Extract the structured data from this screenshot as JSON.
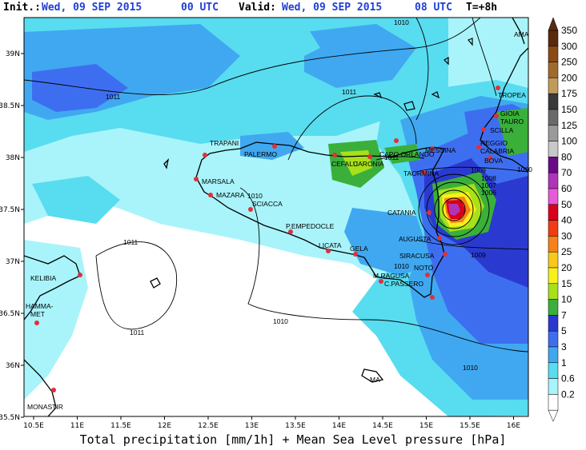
{
  "header": {
    "init_label": "Init.:",
    "init_value": "Wed, 09 SEP 2015",
    "init_time": "00 UTC",
    "valid_label": "Valid:",
    "valid_value": "Wed, 09 SEP 2015",
    "valid_time": "08 UTC",
    "lead": "T=+8h"
  },
  "footer": {
    "caption": "Total precipitation [mm/1h] + Mean Sea Level pressure [hPa]"
  },
  "axes": {
    "lon_labels": [
      "10.5E",
      "11E",
      "11.5E",
      "12E",
      "12.5E",
      "13E",
      "13.5E",
      "14E",
      "14.5E",
      "15E",
      "15.5E",
      "16E"
    ],
    "lat_labels": [
      "39N",
      "38.5N",
      "38N",
      "37.5N",
      "37N",
      "36.5N",
      "36N",
      "35.5N"
    ]
  },
  "colorbar": {
    "levels": [
      "350",
      "300",
      "250",
      "200",
      "175",
      "150",
      "125",
      "100",
      "80",
      "70",
      "60",
      "50",
      "40",
      "30",
      "25",
      "20",
      "15",
      "10",
      "7",
      "5",
      "3",
      "1",
      "0.6",
      "0.2"
    ],
    "colors": [
      "#5a2a0c",
      "#8a4a14",
      "#a06a2a",
      "#c09a5a",
      "#3a3a3a",
      "#6a6a6a",
      "#9a9a9a",
      "#c8c8c8",
      "#6a0a8a",
      "#b034b8",
      "#e85ad8",
      "#d8001a",
      "#f43a14",
      "#f8801a",
      "#f8c81a",
      "#f8f01a",
      "#a8e01a",
      "#3ab03a",
      "#2a3ad0",
      "#3e6ef0",
      "#40a8f0",
      "#58dcf0",
      "#a8f4fa",
      "#ffffff"
    ]
  },
  "isobars": [
    "1010",
    "1011",
    "1011",
    "1011",
    "1011",
    "1011",
    "1010",
    "1010",
    "1010",
    "1009",
    "1009",
    "1008",
    "1007",
    "1006",
    "1010",
    "1010",
    "1010"
  ],
  "places": {
    "trapani": "TRAPANI",
    "palermo": "PALERMO",
    "marsala": "MARSALA",
    "mazara": "MAZARA",
    "sciacca": "SCIACCA",
    "cefalu": "CEFALU",
    "caronia": "CARONIA",
    "capo_orlando": "CAPO ORLANDO",
    "messina": "MESSINA",
    "taormina": "TAORMINA",
    "catania": "CATANIA",
    "augusta": "AUGUSTA",
    "siracusa": "SIRACUSA",
    "noto": "NOTO",
    "m_ragusa": "M.RAGUSA",
    "c_passero": "C.PASSERO",
    "licata": "LICATA",
    "gela": "GELA",
    "p_empedocle": "P.EMPEDOCLE",
    "kelibia": "KELIBIA",
    "hammamet": "HAMMA-\nMET",
    "monastir": "MONASTIR",
    "tropea": "TROPEA",
    "gioia_tauro": "GIOIA\nTAURO",
    "scilla": "SCILLA",
    "reggio_calabria": "REGGIO\nCALABRIA",
    "bova": "BOVA",
    "malta": "MA",
    "calabria_top": "AMA"
  }
}
